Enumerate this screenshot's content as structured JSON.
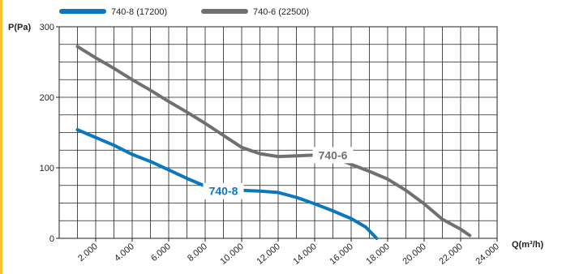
{
  "chart_data": {
    "type": "line",
    "xlabel": "Q(m³/h)",
    "ylabel": "P(Pa)",
    "xlim": [
      0,
      24000
    ],
    "ylim": [
      0,
      300
    ],
    "x_ticks": [
      "2.000",
      "4.000",
      "6.000",
      "8.000",
      "10.000",
      "12.000",
      "14.000",
      "16.000",
      "18.000",
      "20.000",
      "22.000",
      "24.000"
    ],
    "y_ticks": [
      "0",
      "100",
      "200",
      "300"
    ],
    "grid": true,
    "legend_position": "top-left",
    "series": [
      {
        "name": "740-8 (17200)",
        "label": "740-8",
        "color": "#0a77c0",
        "x": [
          1000,
          2000,
          3000,
          4000,
          5000,
          6000,
          7000,
          8000,
          9000,
          10000,
          11000,
          12000,
          13000,
          14000,
          15000,
          16000,
          16800,
          17400
        ],
        "y": [
          154,
          143,
          132,
          119,
          109,
          97,
          85,
          74,
          69,
          68,
          67,
          65,
          58,
          49,
          39,
          28,
          16,
          0
        ]
      },
      {
        "name": "740-6 (22500)",
        "label": "740-6",
        "color": "#707070",
        "x": [
          1000,
          2000,
          3000,
          4000,
          5000,
          6000,
          7000,
          8000,
          9000,
          10000,
          11000,
          12000,
          13000,
          14000,
          15000,
          16000,
          17000,
          18000,
          19000,
          20000,
          21000,
          22000,
          22500
        ],
        "y": [
          272,
          256,
          241,
          225,
          210,
          194,
          179,
          163,
          146,
          129,
          120,
          116,
          117,
          118,
          115,
          105,
          95,
          84,
          68,
          49,
          27,
          13,
          4
        ]
      }
    ]
  }
}
